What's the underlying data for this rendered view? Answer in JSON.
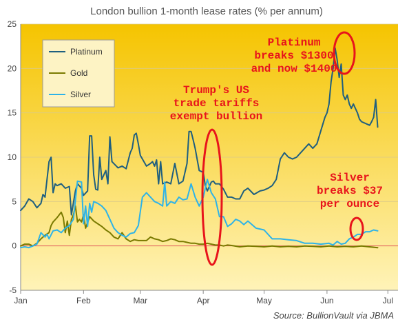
{
  "chart_data": {
    "type": "line",
    "title": "London bullion 1-month lease rates (% per annum)",
    "xlabel": "",
    "ylabel": "",
    "ylim": [
      -5,
      25
    ],
    "yticks": [
      -5,
      0,
      5,
      10,
      15,
      20,
      25
    ],
    "xticks": [
      {
        "label": "Jan",
        "value": 0
      },
      {
        "label": "Feb",
        "value": 31
      },
      {
        "label": "Mar",
        "value": 59
      },
      {
        "label": "Apr",
        "value": 90
      },
      {
        "label": "May",
        "value": 120
      },
      {
        "label": "Jun",
        "value": 151
      },
      {
        "label": "Jul",
        "value": 181
      }
    ],
    "xlim": [
      0,
      186
    ],
    "grid": "horizontal",
    "background_gradient": [
      "#f5c400",
      "#fff3b8"
    ],
    "zero_line_color": "#e05a5a",
    "legend": {
      "placement": "top-left",
      "entries": [
        "Platinum",
        "Gold",
        "Silver"
      ]
    },
    "series": [
      {
        "name": "Platinum",
        "color": "#1f5f7f",
        "x": [
          0,
          2,
          4,
          6,
          8,
          10,
          11,
          12,
          14,
          15,
          16,
          17,
          18,
          20,
          22,
          24,
          25,
          27,
          28,
          30,
          31,
          33,
          34,
          35,
          36,
          37,
          38,
          39,
          40,
          42,
          43,
          44,
          45,
          48,
          50,
          52,
          54,
          55,
          56,
          57,
          58,
          59,
          62,
          64,
          65,
          66,
          67,
          68,
          69,
          70,
          72,
          74,
          76,
          78,
          80,
          82,
          83,
          84,
          85,
          86,
          88,
          90,
          91,
          92,
          93,
          94,
          95,
          96,
          98,
          100,
          102,
          104,
          106,
          108,
          110,
          112,
          115,
          118,
          120,
          122,
          124,
          126,
          128,
          130,
          132,
          134,
          136,
          138,
          140,
          142,
          144,
          146,
          148,
          150,
          151,
          152,
          153,
          154,
          155,
          156,
          157,
          158,
          159,
          160,
          161,
          162,
          163,
          164,
          165,
          166,
          167,
          168,
          170,
          172,
          173,
          174,
          175,
          176
        ],
        "values": [
          4,
          4.5,
          5.3,
          5,
          4.3,
          4.8,
          5.8,
          5.5,
          9.5,
          10,
          6,
          7,
          6.8,
          7,
          6.5,
          6.7,
          3.5,
          6.2,
          7,
          6.5,
          5.7,
          6.2,
          12.4,
          12.4,
          8,
          6.4,
          6.3,
          10,
          7.5,
          8.5,
          7,
          12.3,
          9.5,
          8.8,
          9,
          8.7,
          10.5,
          11,
          12.5,
          12.7,
          11.5,
          10.2,
          9,
          9.3,
          9.5,
          9,
          9.7,
          7,
          9.5,
          7,
          7.2,
          7,
          9.3,
          7,
          7.3,
          9.3,
          12.9,
          12.9,
          12,
          11,
          8.5,
          8.3,
          6.8,
          6.2,
          6.7,
          7.2,
          7.3,
          7,
          7,
          6.4,
          5.5,
          5.5,
          5.3,
          5.3,
          6.2,
          6.5,
          5.8,
          6.2,
          6.3,
          6.5,
          6.8,
          7.5,
          9.8,
          10.5,
          10,
          9.8,
          10,
          10.5,
          11,
          11.5,
          11,
          11.5,
          13,
          14.5,
          15,
          16,
          18.5,
          20,
          22.3,
          21,
          19,
          20.5,
          17,
          16.5,
          17,
          16,
          15.5,
          16,
          15.5,
          15,
          14.3,
          14,
          13.8,
          13.6,
          14,
          14.5,
          16.5,
          13.4
        ]
      },
      {
        "name": "Gold",
        "color": "#7a7a00",
        "x": [
          0,
          2,
          4,
          6,
          8,
          10,
          12,
          14,
          15,
          16,
          18,
          20,
          21,
          22,
          23,
          24,
          25,
          26,
          27,
          28,
          29,
          30,
          31,
          32,
          34,
          36,
          38,
          40,
          42,
          44,
          46,
          48,
          50,
          52,
          54,
          56,
          58,
          60,
          62,
          64,
          66,
          68,
          70,
          72,
          74,
          76,
          78,
          80,
          82,
          84,
          86,
          88,
          90,
          92,
          94,
          96,
          98,
          100,
          102,
          104,
          108,
          112,
          116,
          120,
          124,
          128,
          132,
          136,
          140,
          144,
          148,
          152,
          156,
          160,
          164,
          168,
          172,
          176
        ],
        "values": [
          0,
          0.2,
          0.2,
          0,
          0.3,
          0.8,
          1.2,
          1.5,
          2.3,
          2.7,
          3.2,
          3.8,
          3.2,
          1.5,
          2.8,
          1.2,
          3,
          3.5,
          4.5,
          2.7,
          3,
          2.7,
          3.5,
          2,
          3.3,
          2.8,
          2.5,
          2.2,
          1.8,
          1.5,
          1,
          0.8,
          1.5,
          0.8,
          0.5,
          0.7,
          0.6,
          0.6,
          0.6,
          1,
          0.8,
          0.7,
          0.5,
          0.6,
          0.8,
          0.7,
          0.5,
          0.5,
          0.4,
          0.3,
          0.3,
          0.2,
          0.2,
          0.3,
          0.2,
          0.1,
          0.1,
          0,
          0.1,
          0.05,
          -0.1,
          0,
          -0.05,
          -0.1,
          0,
          -0.1,
          -0.05,
          -0.1,
          0,
          -0.05,
          -0.1,
          0,
          -0.1,
          -0.05,
          -0.1,
          0,
          -0.1,
          -0.2
        ]
      },
      {
        "name": "Silver",
        "color": "#2db3e8",
        "x": [
          0,
          2,
          4,
          6,
          8,
          10,
          12,
          13,
          14,
          16,
          18,
          20,
          22,
          24,
          26,
          28,
          30,
          31,
          32,
          33,
          34,
          35,
          36,
          38,
          40,
          42,
          44,
          46,
          48,
          50,
          52,
          54,
          56,
          58,
          60,
          62,
          64,
          66,
          68,
          70,
          71,
          72,
          74,
          76,
          78,
          80,
          82,
          84,
          86,
          88,
          90,
          92,
          94,
          96,
          98,
          100,
          102,
          104,
          106,
          108,
          110,
          112,
          116,
          120,
          124,
          128,
          132,
          136,
          140,
          144,
          148,
          152,
          154,
          156,
          158,
          160,
          162,
          164,
          166,
          168,
          170,
          172,
          174,
          176
        ],
        "values": [
          -0.2,
          -0.1,
          -0.2,
          0,
          0.2,
          1.5,
          1,
          1.3,
          0.8,
          1.7,
          1.8,
          1.5,
          2,
          2.3,
          3,
          7.3,
          7.2,
          2.5,
          4.5,
          2.2,
          4.8,
          3.8,
          5,
          4.8,
          4.5,
          4,
          3,
          2,
          1.5,
          1.2,
          1,
          1.4,
          1.5,
          2.3,
          5.5,
          6,
          5.5,
          5,
          4.8,
          4.5,
          7.2,
          4.5,
          5,
          4.8,
          5.5,
          5.2,
          5.3,
          7,
          5.5,
          4.5,
          5.5,
          7.5,
          6,
          5.3,
          3.3,
          3.3,
          2.2,
          2.5,
          3,
          2.8,
          2.4,
          2.8,
          2,
          1.8,
          0.8,
          0.8,
          0.7,
          0.6,
          0.3,
          0.3,
          0.2,
          0.3,
          0.1,
          0.5,
          0.2,
          0.3,
          0.8,
          1,
          1.3,
          1.3,
          1.6,
          1.6,
          1.8,
          1.7
        ]
      }
    ],
    "annotations": [
      {
        "lines": [
          "Platinum",
          "breaks $1300",
          "and now $1400"
        ]
      },
      {
        "lines": [
          "Trump's US",
          "trade tariffs",
          "exempt bullion"
        ]
      },
      {
        "lines": [
          "Silver",
          "breaks $37",
          "per ounce"
        ]
      }
    ],
    "source": "Source: BullionVault via JBMA"
  }
}
